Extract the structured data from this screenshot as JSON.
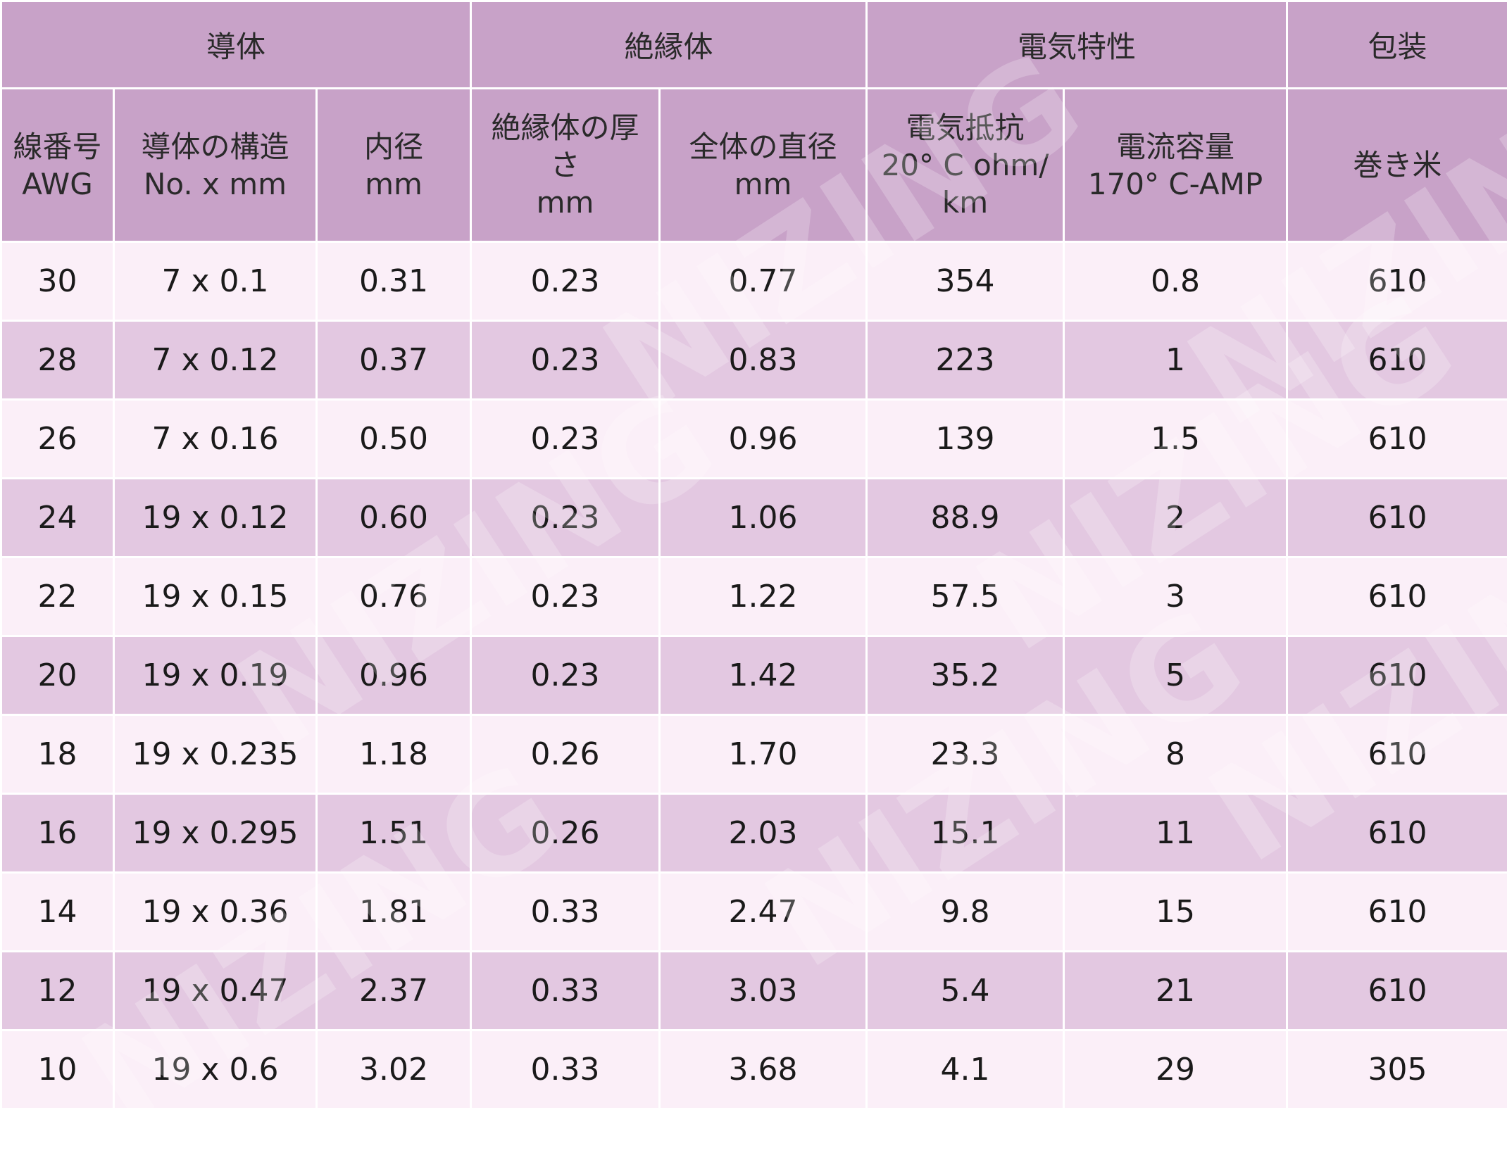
{
  "table": {
    "groups": [
      {
        "label": "導体",
        "span": 3
      },
      {
        "label": "絶縁体",
        "span": 2
      },
      {
        "label": "電気特性",
        "span": 2
      },
      {
        "label": "包装",
        "span": 1
      }
    ],
    "columns": [
      [
        "線番号",
        "AWG"
      ],
      [
        "導体の構造",
        "No. x mm"
      ],
      [
        "内径",
        "mm"
      ],
      [
        "絶縁体の厚",
        "さ",
        "mm"
      ],
      [
        "全体の直径",
        "mm"
      ],
      [
        "電気抵抗",
        "20° C ohm/",
        "km"
      ],
      [
        "電流容量",
        "170° C-AMP"
      ],
      [
        "巻き米"
      ]
    ],
    "rows": [
      [
        "30",
        "7 x 0.1",
        "0.31",
        "0.23",
        "0.77",
        "354",
        "0.8",
        "610"
      ],
      [
        "28",
        "7 x 0.12",
        "0.37",
        "0.23",
        "0.83",
        "223",
        "1",
        "610"
      ],
      [
        "26",
        "7 x 0.16",
        "0.50",
        "0.23",
        "0.96",
        "139",
        "1.5",
        "610"
      ],
      [
        "24",
        "19 x 0.12",
        "0.60",
        "0.23",
        "1.06",
        "88.9",
        "2",
        "610"
      ],
      [
        "22",
        "19 x 0.15",
        "0.76",
        "0.23",
        "1.22",
        "57.5",
        "3",
        "610"
      ],
      [
        "20",
        "19 x 0.19",
        "0.96",
        "0.23",
        "1.42",
        "35.2",
        "5",
        "610"
      ],
      [
        "18",
        "19 x 0.235",
        "1.18",
        "0.26",
        "1.70",
        "23.3",
        "8",
        "610"
      ],
      [
        "16",
        "19 x 0.295",
        "1.51",
        "0.26",
        "2.03",
        "15.1",
        "11",
        "610"
      ],
      [
        "14",
        "19 x 0.36",
        "1.81",
        "0.33",
        "2.47",
        "9.8",
        "15",
        "610"
      ],
      [
        "12",
        "19 x 0.47",
        "2.37",
        "0.33",
        "3.03",
        "5.4",
        "21",
        "610"
      ],
      [
        "10",
        "19 x 0.6",
        "3.02",
        "0.33",
        "3.68",
        "4.1",
        "29",
        "305"
      ]
    ]
  },
  "watermark": "NIZING",
  "colors": {
    "header_bg": "#c8a2c8",
    "row_light": "#fbeff8",
    "row_dark": "#e3c8e1"
  }
}
